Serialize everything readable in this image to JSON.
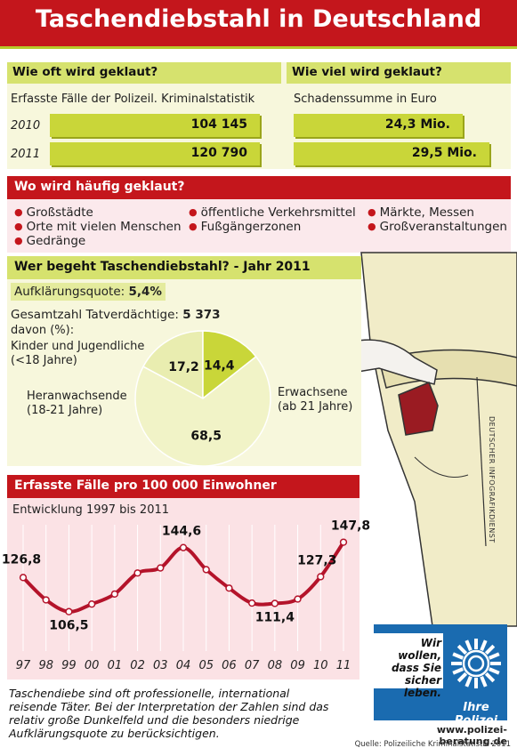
{
  "title": "Taschendiebstahl in Deutschland",
  "section1": {
    "left_heading": "Wie oft wird geklaut?",
    "left_sub": "Erfasste Fälle der Polizeil. Kriminalstatistik",
    "right_heading": "Wie viel wird geklaut?",
    "right_sub": "Schadenssumme in Euro",
    "rows": [
      {
        "year": "2010",
        "cases": "104 145",
        "damage": "24,3 Mio."
      },
      {
        "year": "2011",
        "cases": "120 790",
        "damage": "29,5 Mio."
      }
    ]
  },
  "section2": {
    "heading": "Wo wird häufig geklaut?",
    "col1": [
      "Großstädte",
      "Orte mit vielen Menschen",
      "Gedränge"
    ],
    "col2": [
      "öffentliche Verkehrsmittel",
      "Fußgängerzonen"
    ],
    "col3": [
      "Märkte, Messen",
      "Großveranstaltungen"
    ]
  },
  "section3": {
    "heading": "Wer begeht Taschendiebstahl? - Jahr 2011",
    "clearance_label": "Aufklärungsquote:",
    "clearance_value": "5,4%",
    "total_label": "Gesamtzahl Tatverdächtige:",
    "total_value": "5 373",
    "share_label": "davon (%):",
    "pie": [
      {
        "label": "Kinder und Jugendliche",
        "sublabel": "(<18 Jahre)",
        "value": 17.2,
        "display": "17,2",
        "color": "#e9edb0"
      },
      {
        "label": "Heranwachsende",
        "sublabel": "(18-21 Jahre)",
        "value": 14.4,
        "display": "14,4",
        "color": "#c9d639"
      },
      {
        "label": "Erwachsene",
        "sublabel": "(ab 21 Jahre)",
        "value": 68.5,
        "display": "68,5",
        "color": "#f1f3c7"
      }
    ]
  },
  "section4": {
    "heading": "Erfasste Fälle pro 100 000 Einwohner",
    "sub": "Entwicklung 1997 bis 2011"
  },
  "chart_data": {
    "type": "line",
    "title": "Erfasste Fälle pro 100 000 Einwohner",
    "subtitle": "Entwicklung 1997 bis 2011",
    "categories": [
      "97",
      "98",
      "99",
      "00",
      "01",
      "02",
      "03",
      "04",
      "05",
      "06",
      "07",
      "08",
      "09",
      "10",
      "11"
    ],
    "values": [
      126.8,
      113.5,
      106.5,
      111.0,
      117.0,
      129.5,
      132.5,
      144.6,
      131.5,
      120.5,
      111.6,
      111.4,
      114.0,
      127.3,
      147.8
    ],
    "labeled": [
      {
        "index": 0,
        "text": "126,8"
      },
      {
        "index": 2,
        "text": "106,5"
      },
      {
        "index": 7,
        "text": "144,6"
      },
      {
        "index": 11,
        "text": "111,4"
      },
      {
        "index": 13,
        "text": "127,3"
      },
      {
        "index": 14,
        "text": "147,8"
      }
    ],
    "xlabel": "",
    "ylabel": "",
    "ylim": [
      100,
      155
    ],
    "color": "#b4132a"
  },
  "footer": {
    "text": "Taschendiebe sind oft professionelle, international reisende Täter. Bei der Interpretation der Zahlen sind das relativ große Dunkelfeld und die besonders niedrige Aufklärungsquote zu berücksichtigen.",
    "logo_text": "Wir wollen, dass Sie sicher leben.",
    "logo_sub": "Ihre Polizei",
    "url": "www.polizei-beratung.de",
    "source": "Quelle: Polizeiliche Kriminalstatistik 2011",
    "agency": "DEUTSCHER INFOGRAFIKDIENST"
  }
}
